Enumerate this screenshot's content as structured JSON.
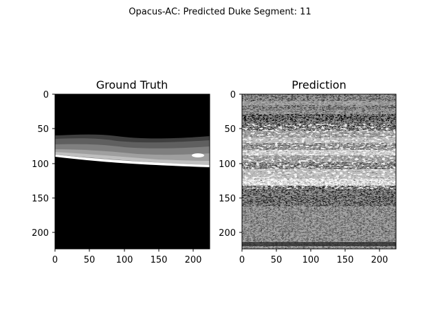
{
  "figure": {
    "suptitle": "Opacus-AC: Predicted Duke Segment: 11"
  },
  "panels": [
    {
      "title": "Ground Truth",
      "xticks": [
        "0",
        "50",
        "100",
        "150",
        "200"
      ],
      "yticks": [
        "0",
        "50",
        "100",
        "150",
        "200"
      ]
    },
    {
      "title": "Prediction",
      "xticks": [
        "0",
        "50",
        "100",
        "150",
        "200"
      ],
      "yticks": [
        "0",
        "50",
        "100",
        "150",
        "200"
      ]
    }
  ],
  "image_size": [
    224,
    224
  ],
  "colors": {
    "background": "#000000",
    "dark_gray": "#3f3f3f",
    "mid_gray": "#7f7f7f",
    "light_gray": "#bfbfbf",
    "white": "#ffffff"
  }
}
